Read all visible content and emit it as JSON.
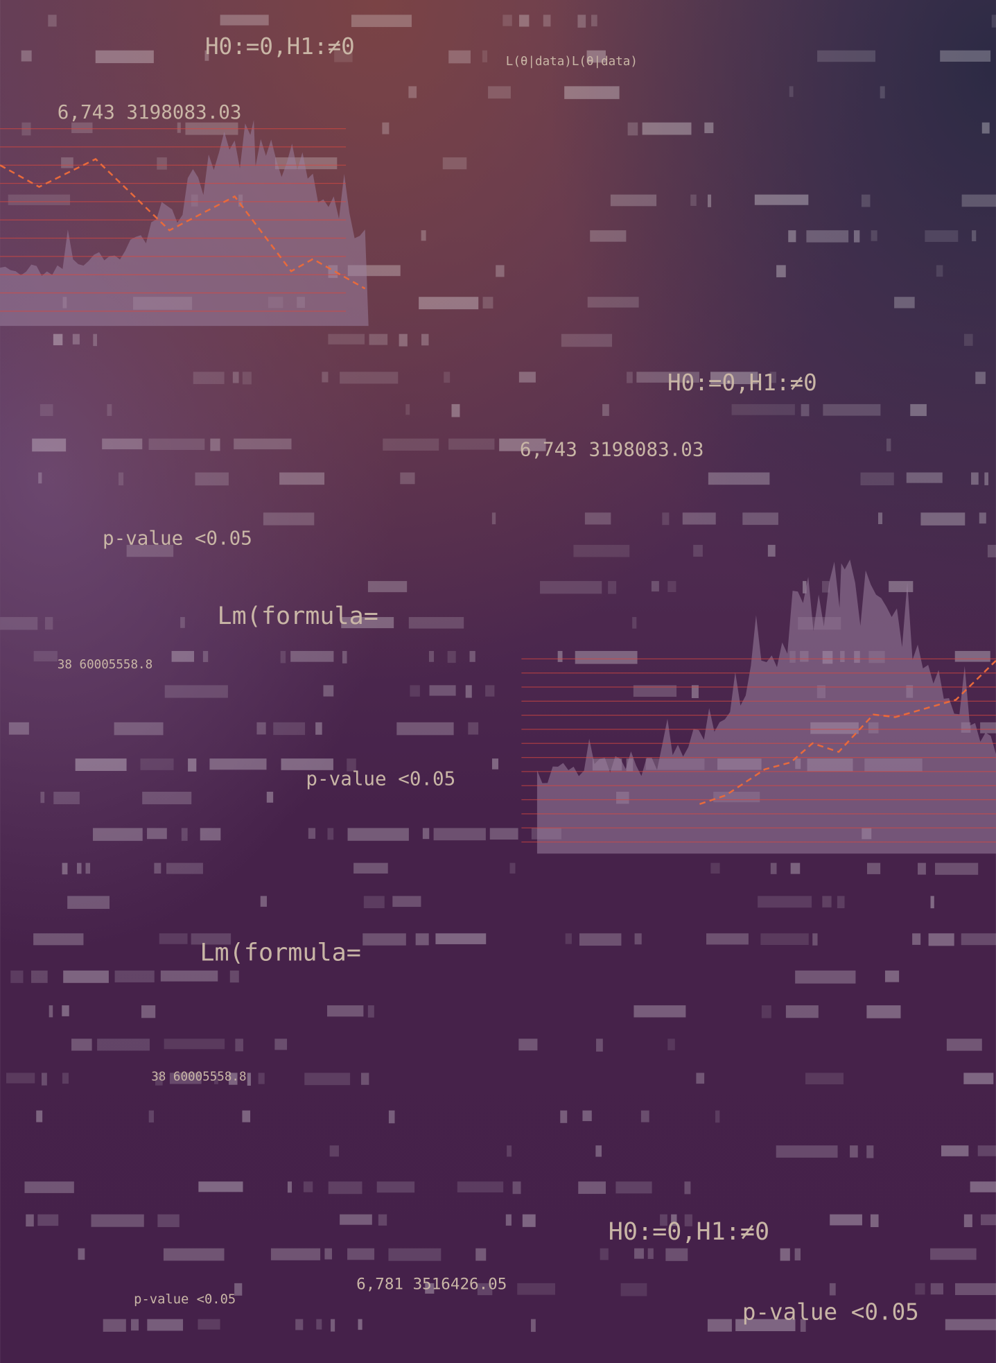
{
  "texts": [
    "H0:=0,H1:≠0",
    "L(θ|data)L(θ|data)",
    "6,743 3198083.03",
    "H0:=0,H1:≠0",
    "6,743 3198083.03",
    "p-value <0.05",
    "Lm(formula=",
    "38 60005558.8",
    "p-value <0.05",
    "Lm(formula=",
    "38 60005558.8",
    "H0:=0,H1:≠0",
    "6,781 3516426.05",
    "p-value <0.05",
    "p-value <0.05"
  ]
}
